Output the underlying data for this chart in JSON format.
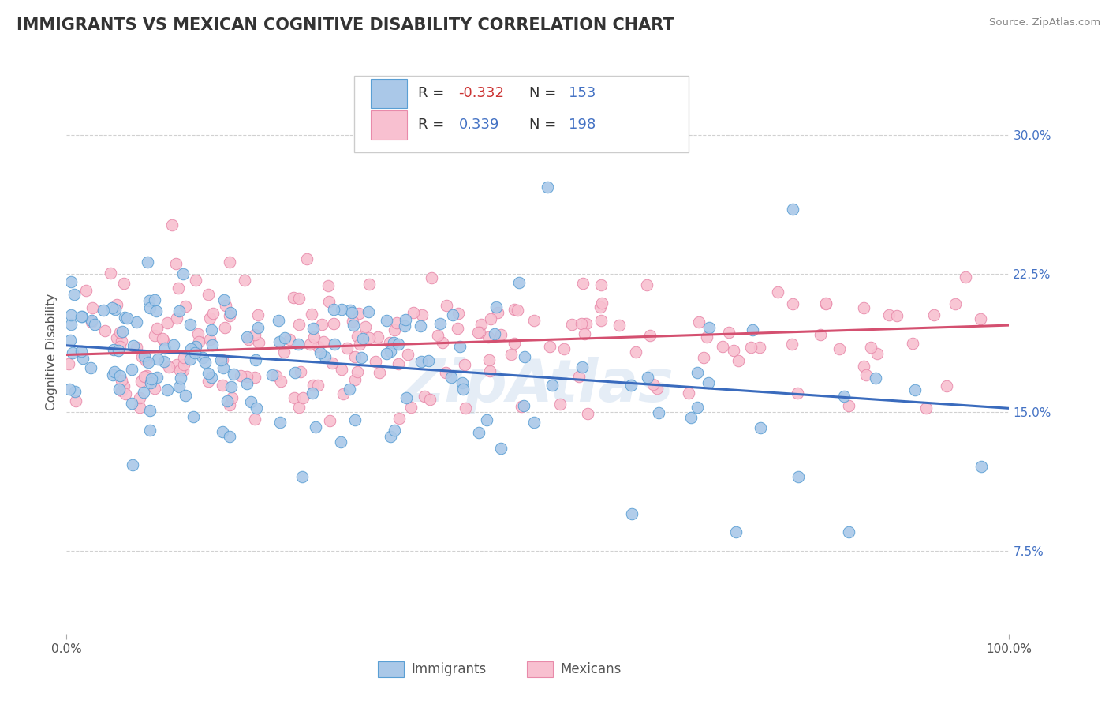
{
  "title": "IMMIGRANTS VS MEXICAN COGNITIVE DISABILITY CORRELATION CHART",
  "source": "Source: ZipAtlas.com",
  "ylabel": "Cognitive Disability",
  "y_ticks": [
    0.075,
    0.15,
    0.225,
    0.3
  ],
  "y_tick_labels": [
    "7.5%",
    "15.0%",
    "22.5%",
    "30.0%"
  ],
  "x_min": 0.0,
  "x_max": 1.0,
  "y_min": 0.03,
  "y_max": 0.335,
  "blue_R": -0.332,
  "blue_N": 153,
  "pink_R": 0.339,
  "pink_N": 198,
  "blue_fill_color": "#aac8e8",
  "blue_edge_color": "#5a9fd4",
  "pink_fill_color": "#f8c0d0",
  "pink_edge_color": "#e88aaa",
  "blue_line_color": "#3a6bbd",
  "pink_line_color": "#d45070",
  "legend_label_blue": "Immigrants",
  "legend_label_pink": "Mexicans",
  "title_fontsize": 15,
  "axis_label_fontsize": 11,
  "tick_fontsize": 11,
  "legend_fontsize": 13,
  "background_color": "#ffffff",
  "grid_color": "#cccccc",
  "watermark": "ZipAtlas",
  "blue_trend_start_y": 0.186,
  "blue_trend_end_y": 0.152,
  "pink_trend_start_y": 0.181,
  "pink_trend_end_y": 0.197,
  "r_value_color": "#4472c4",
  "n_value_color": "#4472c4",
  "r_neg_color": "#cc3333"
}
